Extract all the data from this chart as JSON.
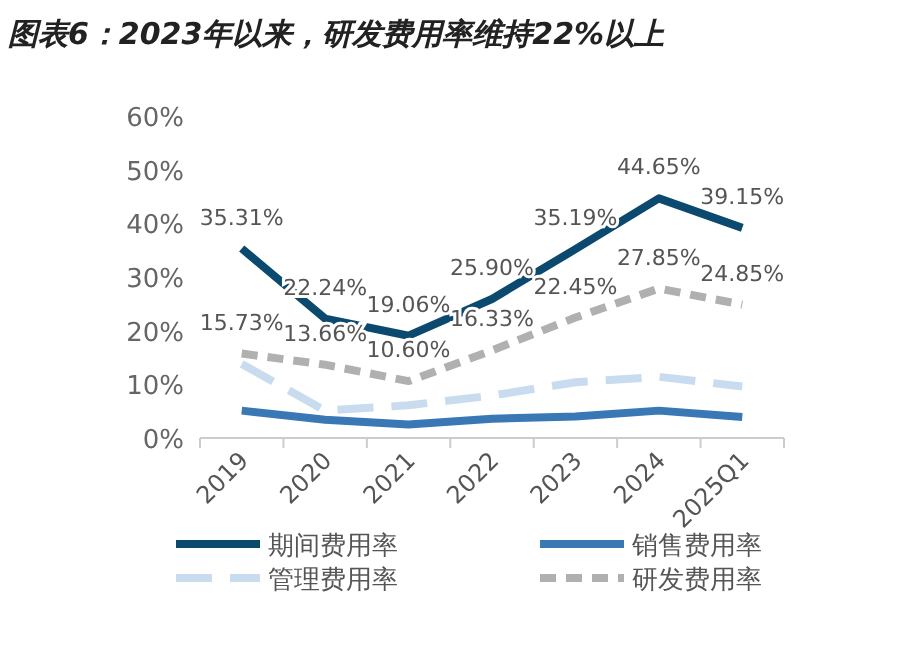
{
  "chart_data": {
    "type": "line",
    "title": "图表6：2023年以来，研发费用率维持22%以上",
    "categories": [
      "2019",
      "2020",
      "2021",
      "2022",
      "2023",
      "2024",
      "2025Q1"
    ],
    "ylim": [
      0,
      60
    ],
    "yticks": [
      {
        "value": 0,
        "label": "0%"
      },
      {
        "value": 10,
        "label": "10%"
      },
      {
        "value": 20,
        "label": "20%"
      },
      {
        "value": 30,
        "label": "30%"
      },
      {
        "value": 40,
        "label": "40%"
      },
      {
        "value": 50,
        "label": "50%"
      },
      {
        "value": 60,
        "label": "60%"
      }
    ],
    "grid": false,
    "legend": "bottom",
    "marker": "none",
    "series": [
      {
        "name": "期间费用率",
        "color": "#0b4a6e",
        "line_style": "solid",
        "values": [
          35.31,
          22.24,
          19.06,
          25.9,
          35.19,
          44.65,
          39.15
        ],
        "value_labels": [
          "35.31%",
          "22.24%",
          "19.06%",
          "25.90%",
          "35.19%",
          "44.65%",
          "39.15%"
        ]
      },
      {
        "name": "销售费用率",
        "color": "#3a78b5",
        "line_style": "solid",
        "values": [
          5.1,
          3.4,
          2.5,
          3.6,
          4.0,
          5.1,
          3.9
        ]
      },
      {
        "name": "管理费用率",
        "color": "#c9dcef",
        "line_style": "dashed",
        "values": [
          13.8,
          5.1,
          6.1,
          7.9,
          10.4,
          11.4,
          9.6
        ]
      },
      {
        "name": "研发费用率",
        "color": "#b0b0b0",
        "line_style": "dotted",
        "values": [
          15.73,
          13.66,
          10.6,
          16.33,
          22.45,
          27.85,
          24.85
        ],
        "value_labels": [
          "15.73%",
          "13.66%",
          "10.60%",
          "16.33%",
          "22.45%",
          "27.85%",
          "24.85%"
        ]
      }
    ]
  }
}
